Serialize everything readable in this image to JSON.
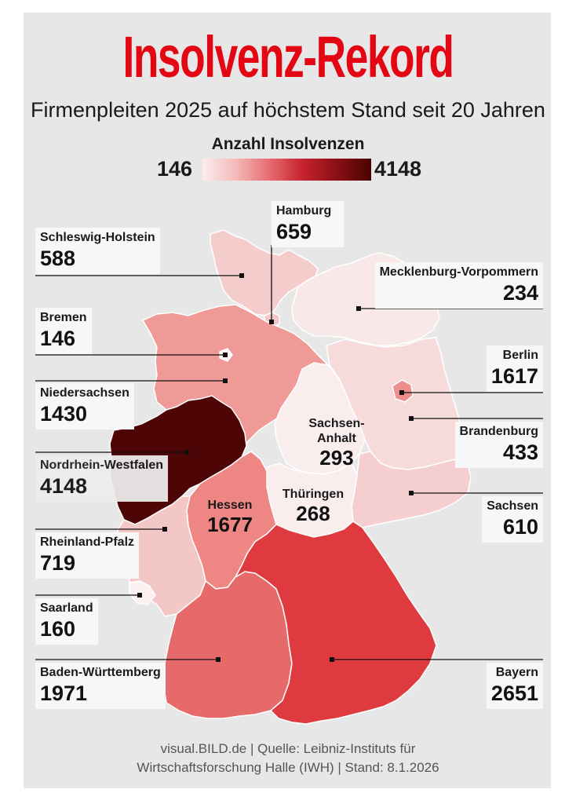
{
  "title": "Insolvenz-Rekord",
  "subtitle": "Firmenpleiten 2025 auf höchstem Stand seit 20 Jahren",
  "legend": {
    "title": "Anzahl Insolvenzen",
    "min": "146",
    "max": "4148"
  },
  "colors": {
    "title_red": "#e30613",
    "scale_low": "#fbecec",
    "scale_high": "#4a0202"
  },
  "states": {
    "schleswig_holstein": {
      "name": "Schleswig-Holstein",
      "value": "588"
    },
    "hamburg": {
      "name": "Hamburg",
      "value": "659"
    },
    "mecklenburg_vorpommern": {
      "name": "Mecklenburg-Vorpommern",
      "value": "234"
    },
    "bremen": {
      "name": "Bremen",
      "value": "146"
    },
    "berlin": {
      "name": "Berlin",
      "value": "1617"
    },
    "niedersachsen": {
      "name": "Niedersachsen",
      "value": "1430"
    },
    "brandenburg": {
      "name": "Brandenburg",
      "value": "433"
    },
    "sachsen_anhalt": {
      "name_line1": "Sachsen-",
      "name_line2": "Anhalt",
      "value": "293"
    },
    "nordrhein_westfalen": {
      "name": "Nordrhein-Westfalen",
      "value": "4148"
    },
    "hessen": {
      "name": "Hessen",
      "value": "1677"
    },
    "thueringen": {
      "name": "Thüringen",
      "value": "268"
    },
    "sachsen": {
      "name": "Sachsen",
      "value": "610"
    },
    "rheinland_pfalz": {
      "name": "Rheinland-Pfalz",
      "value": "719"
    },
    "saarland": {
      "name": "Saarland",
      "value": "160"
    },
    "baden_wuerttemberg": {
      "name": "Baden-Württemberg",
      "value": "1971"
    },
    "bayern": {
      "name": "Bayern",
      "value": "2651"
    }
  },
  "footer": {
    "line1": "visual.BILD.de | Quelle: Leibniz-Instituts für",
    "line2": "Wirtschaftsforschung Halle (IWH) | Stand: 8.1.2026"
  }
}
